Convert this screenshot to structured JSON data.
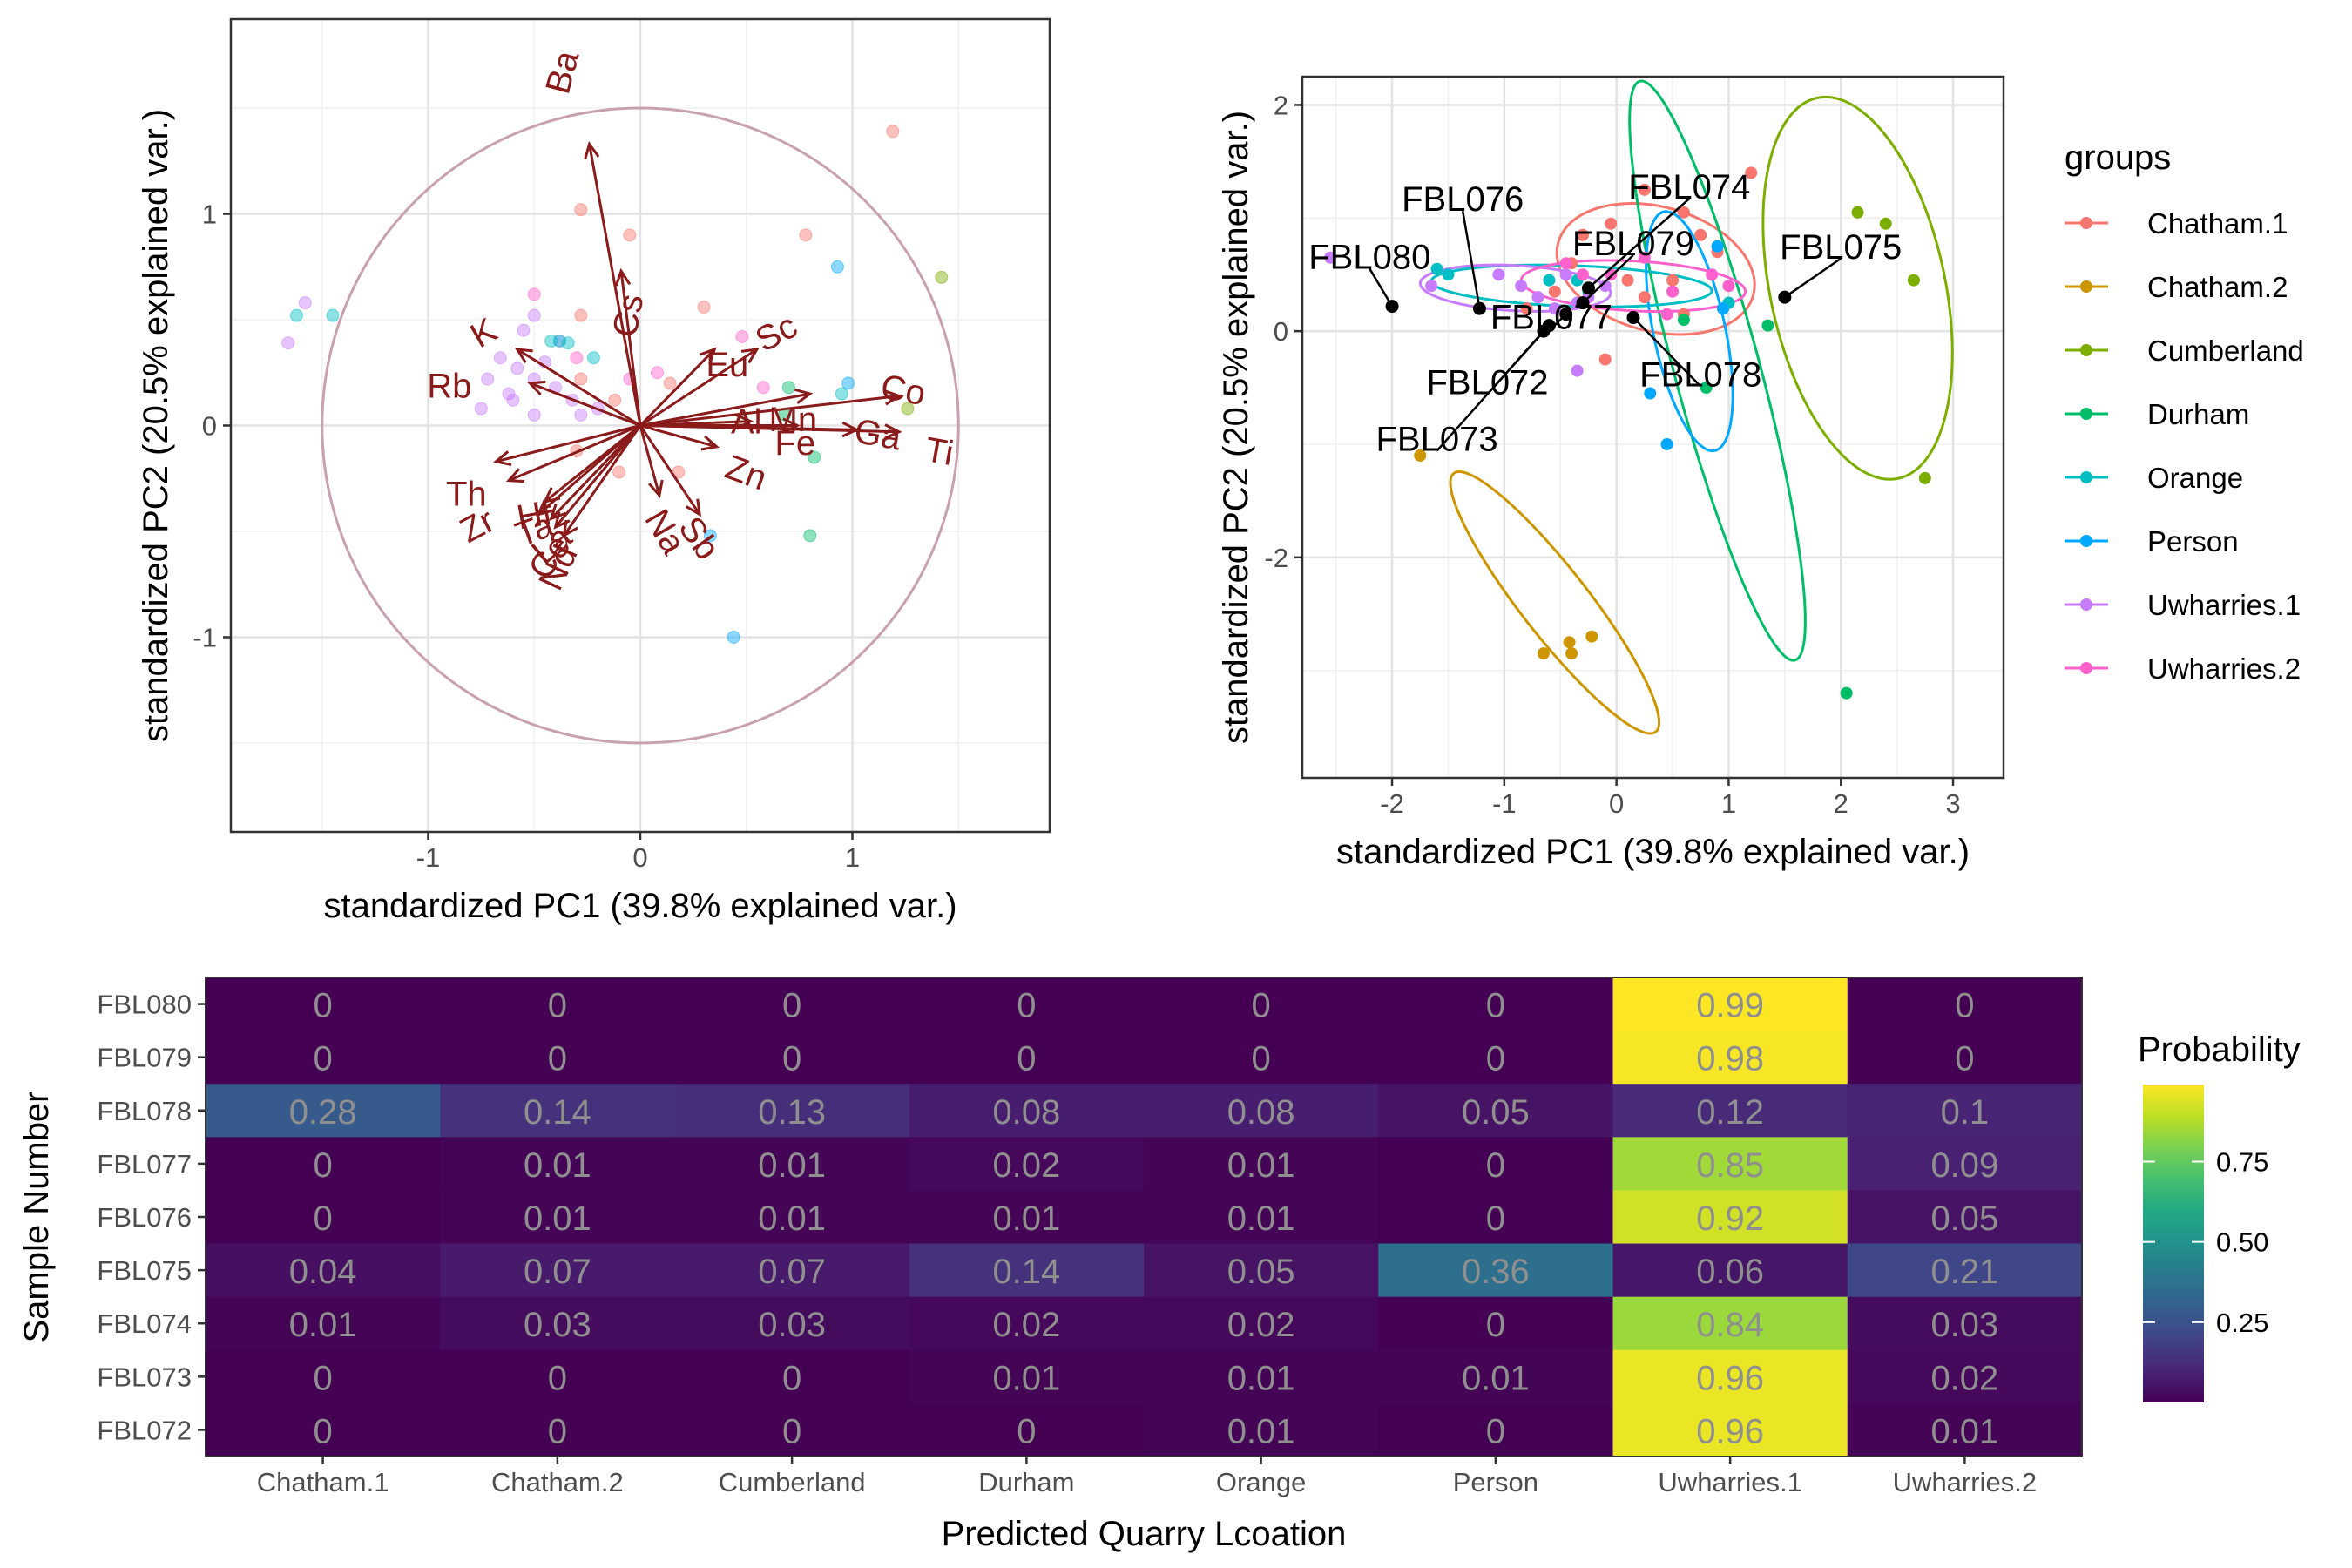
{
  "chart_data": [
    {
      "type": "biplot",
      "xlabel": "standardized PC1 (39.8% explained var.)",
      "ylabel": "standardized PC2 (20.5% explained var.)",
      "xlim": [
        -1.93,
        1.93
      ],
      "ylim": [
        -1.92,
        1.92
      ],
      "xticks": [
        -1,
        0,
        1
      ],
      "yticks": [
        -1,
        0,
        1
      ],
      "grid": true,
      "circle_color": "#c9a1ad",
      "arrow_color": "#8b1a1a",
      "point_colors": {
        "red": "#F8766D",
        "orange": "#CD9600",
        "olive": "#7CAE00",
        "green": "#00BE67",
        "teal": "#00BFC4",
        "blue": "#00A9FF",
        "purple": "#C77CFF",
        "pink": "#FF61CC"
      },
      "loadings": [
        {
          "label": "Ba",
          "x": -0.24,
          "y": 1.33,
          "lx": -0.37,
          "ly": 1.67,
          "angle": 75
        },
        {
          "label": "Cs",
          "x": -0.09,
          "y": 0.73,
          "lx": -0.06,
          "ly": 0.52,
          "angle": 80
        },
        {
          "label": "K",
          "x": -0.58,
          "y": 0.36,
          "lx": -0.74,
          "ly": 0.44,
          "angle": 30
        },
        {
          "label": "Rb",
          "x": -0.52,
          "y": 0.2,
          "lx": -0.9,
          "ly": 0.19,
          "angle": 0
        },
        {
          "label": "Eu",
          "x": 0.35,
          "y": 0.36,
          "lx": 0.41,
          "ly": 0.29,
          "angle": 0
        },
        {
          "label": "Sc",
          "x": 0.55,
          "y": 0.36,
          "lx": 0.64,
          "ly": 0.44,
          "angle": 28
        },
        {
          "label": "Mn",
          "x": 0.8,
          "y": 0.15,
          "lx": 0.72,
          "ly": 0.03,
          "angle": 0
        },
        {
          "label": "Al",
          "x": 0.52,
          "y": 0.02,
          "lx": 0.5,
          "ly": 0.02,
          "angle": 0
        },
        {
          "label": "Fe",
          "x": 0.74,
          "y": 0.0,
          "lx": 0.73,
          "ly": -0.08,
          "angle": 0
        },
        {
          "label": "Co",
          "x": 1.22,
          "y": 0.14,
          "lx": 1.24,
          "ly": 0.17,
          "angle": -10
        },
        {
          "label": "Ga",
          "x": 1.02,
          "y": -0.02,
          "lx": 1.12,
          "ly": -0.04,
          "angle": -10
        },
        {
          "label": "Ti",
          "x": 1.22,
          "y": -0.03,
          "lx": 1.41,
          "ly": -0.12,
          "angle": -10
        },
        {
          "label": "Zn",
          "x": 0.36,
          "y": -0.1,
          "lx": 0.5,
          "ly": -0.22,
          "angle": -20
        },
        {
          "label": "Sb",
          "x": 0.28,
          "y": -0.42,
          "lx": 0.28,
          "ly": -0.53,
          "angle": -55
        },
        {
          "label": "Na",
          "x": 0.09,
          "y": -0.33,
          "lx": 0.12,
          "ly": -0.5,
          "angle": -60
        },
        {
          "label": "Th",
          "x": -0.68,
          "y": -0.17,
          "lx": -0.82,
          "ly": -0.32,
          "angle": 0
        },
        {
          "label": "Zr",
          "x": -0.62,
          "y": -0.26,
          "lx": -0.77,
          "ly": -0.47,
          "angle": 28
        },
        {
          "label": "Hf",
          "x": -0.45,
          "y": -0.36,
          "lx": -0.5,
          "ly": -0.42,
          "angle": 10
        },
        {
          "label": "Ta",
          "x": -0.48,
          "y": -0.42,
          "lx": -0.5,
          "ly": -0.49,
          "angle": 20
        },
        {
          "label": "La",
          "x": -0.42,
          "y": -0.44,
          "lx": -0.42,
          "ly": -0.56,
          "angle": 40
        },
        {
          "label": "Ce",
          "x": -0.4,
          "y": -0.48,
          "lx": -0.43,
          "ly": -0.62,
          "angle": 55
        },
        {
          "label": "Nd",
          "x": -0.36,
          "y": -0.52,
          "lx": -0.39,
          "ly": -0.67,
          "angle": 65
        }
      ],
      "points": [
        {
          "x": 1.19,
          "y": 1.39,
          "c": "red"
        },
        {
          "x": -0.28,
          "y": 1.02,
          "c": "red"
        },
        {
          "x": -0.05,
          "y": 0.9,
          "c": "red"
        },
        {
          "x": 0.78,
          "y": 0.9,
          "c": "red"
        },
        {
          "x": 0.3,
          "y": 0.56,
          "c": "red"
        },
        {
          "x": -0.28,
          "y": 0.52,
          "c": "red"
        },
        {
          "x": -0.28,
          "y": 0.22,
          "c": "red"
        },
        {
          "x": 0.14,
          "y": 0.2,
          "c": "red"
        },
        {
          "x": -0.12,
          "y": 0.12,
          "c": "red"
        },
        {
          "x": -0.3,
          "y": -0.12,
          "c": "red"
        },
        {
          "x": -0.1,
          "y": -0.22,
          "c": "red"
        },
        {
          "x": 0.18,
          "y": -0.22,
          "c": "red"
        },
        {
          "x": 0.93,
          "y": 0.75,
          "c": "blue"
        },
        {
          "x": 0.98,
          "y": 0.2,
          "c": "blue"
        },
        {
          "x": 0.44,
          "y": -1.0,
          "c": "blue"
        },
        {
          "x": 0.33,
          "y": -0.52,
          "c": "blue"
        },
        {
          "x": -1.58,
          "y": 0.58,
          "c": "purple"
        },
        {
          "x": -1.66,
          "y": 0.39,
          "c": "purple"
        },
        {
          "x": -0.5,
          "y": 0.52,
          "c": "purple"
        },
        {
          "x": -0.55,
          "y": 0.45,
          "c": "purple"
        },
        {
          "x": -0.66,
          "y": 0.32,
          "c": "purple"
        },
        {
          "x": -0.58,
          "y": 0.27,
          "c": "purple"
        },
        {
          "x": -0.5,
          "y": 0.22,
          "c": "purple"
        },
        {
          "x": -0.72,
          "y": 0.22,
          "c": "purple"
        },
        {
          "x": -0.4,
          "y": 0.18,
          "c": "purple"
        },
        {
          "x": -0.6,
          "y": 0.12,
          "c": "purple"
        },
        {
          "x": -0.32,
          "y": 0.12,
          "c": "purple"
        },
        {
          "x": -0.75,
          "y": 0.08,
          "c": "purple"
        },
        {
          "x": -0.5,
          "y": 0.05,
          "c": "purple"
        },
        {
          "x": -0.28,
          "y": 0.05,
          "c": "purple"
        },
        {
          "x": -0.2,
          "y": 0.08,
          "c": "purple"
        },
        {
          "x": -0.45,
          "y": 0.3,
          "c": "purple"
        },
        {
          "x": -0.38,
          "y": 0.4,
          "c": "purple"
        },
        {
          "x": -0.62,
          "y": 0.15,
          "c": "purple"
        },
        {
          "x": -0.5,
          "y": 0.62,
          "c": "pink"
        },
        {
          "x": -0.3,
          "y": 0.32,
          "c": "pink"
        },
        {
          "x": 0.48,
          "y": 0.42,
          "c": "pink"
        },
        {
          "x": 0.58,
          "y": 0.18,
          "c": "pink"
        },
        {
          "x": 0.08,
          "y": 0.25,
          "c": "pink"
        },
        {
          "x": -0.05,
          "y": 0.22,
          "c": "pink"
        },
        {
          "x": -1.62,
          "y": 0.52,
          "c": "teal"
        },
        {
          "x": -1.45,
          "y": 0.52,
          "c": "teal"
        },
        {
          "x": -0.42,
          "y": 0.4,
          "c": "teal"
        },
        {
          "x": -0.38,
          "y": 0.4,
          "c": "teal"
        },
        {
          "x": -0.34,
          "y": 0.39,
          "c": "teal"
        },
        {
          "x": -0.22,
          "y": 0.32,
          "c": "teal"
        },
        {
          "x": 0.95,
          "y": 0.15,
          "c": "teal"
        },
        {
          "x": 1.42,
          "y": 0.7,
          "c": "olive"
        },
        {
          "x": 1.26,
          "y": 0.08,
          "c": "olive"
        },
        {
          "x": 0.68,
          "y": 0.05,
          "c": "green"
        },
        {
          "x": 0.82,
          "y": -0.15,
          "c": "green"
        },
        {
          "x": 0.8,
          "y": -0.52,
          "c": "green"
        },
        {
          "x": 0.7,
          "y": 0.18,
          "c": "green"
        }
      ]
    },
    {
      "type": "scatter",
      "xlabel": "standardized PC1 (39.8% explained var.)",
      "ylabel": "standardized PC2 (20.5% explained var.)",
      "xlim": [
        -2.8,
        3.45
      ],
      "ylim": [
        -3.95,
        2.25
      ],
      "xticks": [
        -2,
        -1,
        0,
        1,
        2,
        3
      ],
      "yticks": [
        -2,
        0,
        2
      ],
      "grid": true,
      "legend_title": "groups",
      "legend_position": "right",
      "series": [
        {
          "name": "Chatham.1",
          "color": "#F8766D",
          "points": [
            [
              -0.3,
              0.85
            ],
            [
              -0.05,
              0.95
            ],
            [
              0.25,
              1.25
            ],
            [
              0.6,
              1.05
            ],
            [
              0.75,
              0.85
            ],
            [
              1.2,
              1.4
            ],
            [
              -0.55,
              0.35
            ],
            [
              -0.8,
              0.2
            ],
            [
              0.1,
              0.45
            ],
            [
              0.5,
              0.45
            ],
            [
              0.9,
              0.7
            ],
            [
              0.6,
              0.15
            ],
            [
              -0.1,
              -0.25
            ],
            [
              0.25,
              0.3
            ],
            [
              -0.4,
              0.6
            ]
          ],
          "ellipse": {
            "cx": 0.35,
            "cy": 0.55,
            "rx": 0.9,
            "ry": 0.55,
            "angle": 15
          }
        },
        {
          "name": "Chatham.2",
          "color": "#CD9600",
          "points": [
            [
              -1.75,
              -1.1
            ],
            [
              -0.65,
              -2.85
            ],
            [
              -0.42,
              -2.75
            ],
            [
              -0.4,
              -2.85
            ],
            [
              -0.22,
              -2.7
            ]
          ],
          "ellipse": {
            "cx": -0.55,
            "cy": -2.4,
            "rx": 0.3,
            "ry": 1.45,
            "angle": -38
          }
        },
        {
          "name": "Cumberland",
          "color": "#7CAE00",
          "points": [
            [
              2.15,
              1.05
            ],
            [
              2.4,
              0.95
            ],
            [
              2.65,
              0.45
            ],
            [
              2.75,
              -1.3
            ]
          ],
          "ellipse": {
            "cx": 2.15,
            "cy": 0.38,
            "rx": 0.78,
            "ry": 1.72,
            "angle": -12
          }
        },
        {
          "name": "Durham",
          "color": "#00BE67",
          "points": [
            [
              1.35,
              0.05
            ],
            [
              0.8,
              -0.5
            ],
            [
              0.95,
              0.2
            ],
            [
              2.05,
              -3.2
            ],
            [
              0.6,
              0.1
            ]
          ],
          "ellipse": {
            "cx": 0.9,
            "cy": -0.35,
            "rx": 0.38,
            "ry": 2.65,
            "angle": -15
          }
        },
        {
          "name": "Orange",
          "color": "#00BFC4",
          "points": [
            [
              -1.6,
              0.55
            ],
            [
              -1.5,
              0.5
            ],
            [
              -0.6,
              0.45
            ],
            [
              -0.35,
              0.45
            ],
            [
              -0.25,
              0.35
            ],
            [
              1.0,
              0.25
            ]
          ],
          "ellipse": {
            "cx": -0.4,
            "cy": 0.4,
            "rx": 1.25,
            "ry": 0.18,
            "angle": 2
          }
        },
        {
          "name": "Person",
          "color": "#00A9FF",
          "points": [
            [
              0.9,
              0.75
            ],
            [
              0.95,
              0.2
            ],
            [
              0.45,
              -1.0
            ],
            [
              0.3,
              -0.55
            ]
          ],
          "ellipse": {
            "cx": 0.65,
            "cy": 0.0,
            "rx": 0.32,
            "ry": 1.08,
            "angle": -12
          }
        },
        {
          "name": "Uwharries.1",
          "color": "#C77CFF",
          "points": [
            [
              -2.55,
              0.65
            ],
            [
              -1.65,
              0.4
            ],
            [
              -1.05,
              0.5
            ],
            [
              -0.85,
              0.4
            ],
            [
              -0.7,
              0.3
            ],
            [
              -0.55,
              0.2
            ],
            [
              -0.35,
              0.25
            ],
            [
              -0.35,
              -0.35
            ],
            [
              -0.25,
              0.3
            ],
            [
              -0.1,
              0.4
            ],
            [
              -0.45,
              0.5
            ]
          ],
          "ellipse": {
            "cx": -0.9,
            "cy": 0.38,
            "rx": 0.85,
            "ry": 0.2,
            "angle": 3
          }
        },
        {
          "name": "Uwharries.2",
          "color": "#FF61CC",
          "points": [
            [
              -0.45,
              0.6
            ],
            [
              0.25,
              0.65
            ],
            [
              0.5,
              0.35
            ],
            [
              0.45,
              0.15
            ],
            [
              0.85,
              0.5
            ],
            [
              1.0,
              0.4
            ],
            [
              -0.3,
              0.5
            ],
            [
              -0.05,
              0.5
            ]
          ],
          "ellipse": {
            "cx": 0.15,
            "cy": 0.4,
            "rx": 1.0,
            "ry": 0.22,
            "angle": 3
          }
        }
      ],
      "samples": [
        {
          "id": "FBL080",
          "x": -2.0,
          "y": 0.22,
          "lx": -2.2,
          "ly": 0.66
        },
        {
          "id": "FBL076",
          "x": -1.22,
          "y": 0.2,
          "lx": -1.37,
          "ly": 1.17
        },
        {
          "id": "FBL074",
          "x": -0.25,
          "y": 0.38,
          "lx": 0.65,
          "ly": 1.28
        },
        {
          "id": "FBL079",
          "x": -0.3,
          "y": 0.25,
          "lx": 0.15,
          "ly": 0.78
        },
        {
          "id": "FBL075",
          "x": 1.5,
          "y": 0.3,
          "lx": 2.0,
          "ly": 0.75
        },
        {
          "id": "FBL077",
          "x": -0.45,
          "y": 0.15,
          "lx": -0.58,
          "ly": 0.13
        },
        {
          "id": "FBL072",
          "x": -0.6,
          "y": 0.05,
          "lx": -1.15,
          "ly": -0.45
        },
        {
          "id": "FBL073",
          "x": -0.65,
          "y": 0.0,
          "lx": -1.6,
          "ly": -0.95
        },
        {
          "id": "FBL078",
          "x": 0.15,
          "y": 0.12,
          "lx": 0.75,
          "ly": -0.38
        }
      ]
    },
    {
      "type": "heatmap",
      "xlabel": "Predicted Quarry Lcoation",
      "ylabel": "Sample Number",
      "categories": [
        "Chatham.1",
        "Chatham.2",
        "Cumberland",
        "Durham",
        "Orange",
        "Person",
        "Uwharries.1",
        "Uwharries.2"
      ],
      "rows": [
        "FBL080",
        "FBL079",
        "FBL078",
        "FBL077",
        "FBL076",
        "FBL075",
        "FBL074",
        "FBL073",
        "FBL072"
      ],
      "values": [
        [
          "0",
          "0",
          "0",
          "0",
          "0",
          "0",
          "0.99",
          "0"
        ],
        [
          "0",
          "0",
          "0",
          "0",
          "0",
          "0",
          "0.98",
          "0"
        ],
        [
          "0.28",
          "0.14",
          "0.13",
          "0.08",
          "0.08",
          "0.05",
          "0.12",
          "0.1"
        ],
        [
          "0",
          "0.01",
          "0.01",
          "0.02",
          "0.01",
          "0",
          "0.85",
          "0.09"
        ],
        [
          "0",
          "0.01",
          "0.01",
          "0.01",
          "0.01",
          "0",
          "0.92",
          "0.05"
        ],
        [
          "0.04",
          "0.07",
          "0.07",
          "0.14",
          "0.05",
          "0.36",
          "0.06",
          "0.21"
        ],
        [
          "0.01",
          "0.03",
          "0.03",
          "0.02",
          "0.02",
          "0",
          "0.84",
          "0.03"
        ],
        [
          "0",
          "0",
          "0",
          "0.01",
          "0.01",
          "0.01",
          "0.96",
          "0.02"
        ],
        [
          "0",
          "0",
          "0",
          "0",
          "0.01",
          "0",
          "0.96",
          "0.01"
        ]
      ],
      "legend_title": "Probability",
      "legend_ticks": [
        "0.25",
        "0.50",
        "0.75"
      ],
      "colorscale": "viridis",
      "value_range": [
        0,
        0.99
      ],
      "cell_label_color": "#8f8f8f"
    }
  ]
}
